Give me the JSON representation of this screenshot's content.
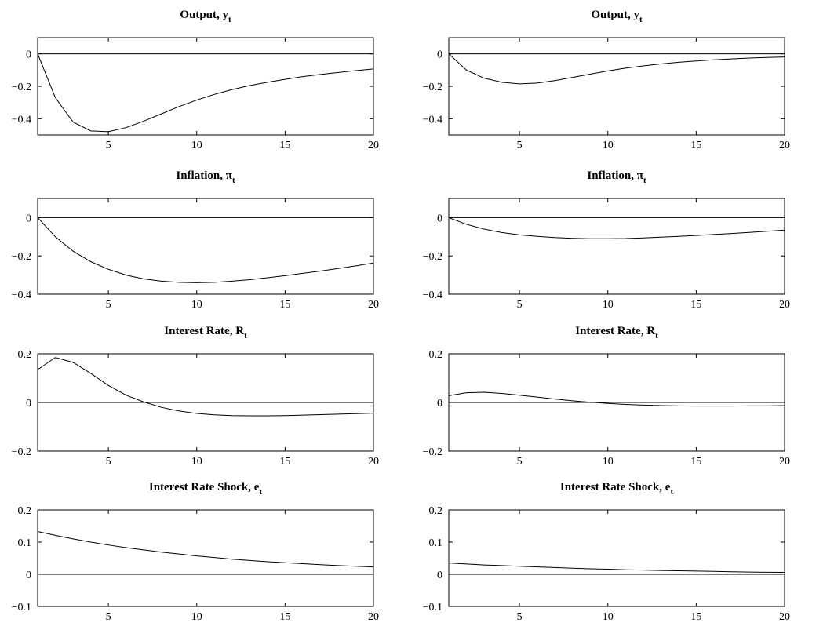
{
  "chart_data": [
    {
      "type": "line",
      "title": "Output, ",
      "title_var": "y",
      "title_sub": "t",
      "xlim": [
        1,
        20
      ],
      "ylim": [
        -0.5,
        0.1
      ],
      "xticks": [
        5,
        10,
        15,
        20
      ],
      "yticks": [
        -0.4,
        -0.2,
        0
      ],
      "ytick_labels": [
        "−0.4",
        "−0.2",
        "0"
      ],
      "zero_line": true,
      "x": [
        1,
        2,
        3,
        4,
        5,
        6,
        7,
        8,
        9,
        10,
        11,
        12,
        13,
        14,
        15,
        16,
        17,
        18,
        19,
        20
      ],
      "values": [
        0,
        -0.27,
        -0.42,
        -0.475,
        -0.48,
        -0.455,
        -0.415,
        -0.37,
        -0.325,
        -0.285,
        -0.25,
        -0.22,
        -0.195,
        -0.175,
        -0.157,
        -0.14,
        -0.127,
        -0.115,
        -0.103,
        -0.093
      ]
    },
    {
      "type": "line",
      "title": "Output, ",
      "title_var": "y",
      "title_sub": "t",
      "xlim": [
        1,
        20
      ],
      "ylim": [
        -0.5,
        0.1
      ],
      "xticks": [
        5,
        10,
        15,
        20
      ],
      "yticks": [
        -0.4,
        -0.2,
        0
      ],
      "ytick_labels": [
        "−0.4",
        "−0.2",
        "0"
      ],
      "zero_line": true,
      "x": [
        1,
        2,
        3,
        4,
        5,
        6,
        7,
        8,
        9,
        10,
        11,
        12,
        13,
        14,
        15,
        16,
        17,
        18,
        19,
        20
      ],
      "values": [
        0,
        -0.1,
        -0.15,
        -0.175,
        -0.185,
        -0.18,
        -0.165,
        -0.145,
        -0.125,
        -0.105,
        -0.088,
        -0.074,
        -0.062,
        -0.052,
        -0.044,
        -0.037,
        -0.031,
        -0.026,
        -0.022,
        -0.019
      ]
    },
    {
      "type": "line",
      "title": "Inflation, ",
      "title_var": "π",
      "title_sub": "t",
      "xlim": [
        1,
        20
      ],
      "ylim": [
        -0.4,
        0.1
      ],
      "xticks": [
        5,
        10,
        15,
        20
      ],
      "yticks": [
        -0.4,
        -0.2,
        0
      ],
      "ytick_labels": [
        "−0.4",
        "−0.2",
        "0"
      ],
      "zero_line": true,
      "x": [
        1,
        2,
        3,
        4,
        5,
        6,
        7,
        8,
        9,
        10,
        11,
        12,
        13,
        14,
        15,
        16,
        17,
        18,
        19,
        20
      ],
      "values": [
        0,
        -0.1,
        -0.175,
        -0.23,
        -0.27,
        -0.3,
        -0.32,
        -0.332,
        -0.338,
        -0.34,
        -0.338,
        -0.332,
        -0.324,
        -0.314,
        -0.303,
        -0.291,
        -0.279,
        -0.266,
        -0.252,
        -0.237
      ]
    },
    {
      "type": "line",
      "title": "Inflation, ",
      "title_var": "π",
      "title_sub": "t",
      "xlim": [
        1,
        20
      ],
      "ylim": [
        -0.4,
        0.1
      ],
      "xticks": [
        5,
        10,
        15,
        20
      ],
      "yticks": [
        -0.4,
        -0.2,
        0
      ],
      "ytick_labels": [
        "−0.4",
        "−0.2",
        "0"
      ],
      "zero_line": true,
      "x": [
        1,
        2,
        3,
        4,
        5,
        6,
        7,
        8,
        9,
        10,
        11,
        12,
        13,
        14,
        15,
        16,
        17,
        18,
        19,
        20
      ],
      "values": [
        0,
        -0.035,
        -0.06,
        -0.078,
        -0.09,
        -0.098,
        -0.104,
        -0.108,
        -0.11,
        -0.11,
        -0.109,
        -0.106,
        -0.102,
        -0.098,
        -0.093,
        -0.088,
        -0.083,
        -0.077,
        -0.071,
        -0.065
      ]
    },
    {
      "type": "line",
      "title": "Interest Rate, ",
      "title_var": "R",
      "title_sub": "t",
      "xlim": [
        1,
        20
      ],
      "ylim": [
        -0.2,
        0.2
      ],
      "xticks": [
        5,
        10,
        15,
        20
      ],
      "yticks": [
        -0.2,
        0,
        0.2
      ],
      "ytick_labels": [
        "−0.2",
        "0",
        "0.2"
      ],
      "zero_line": true,
      "x": [
        1,
        2,
        3,
        4,
        5,
        6,
        7,
        8,
        9,
        10,
        11,
        12,
        13,
        14,
        15,
        16,
        17,
        18,
        19,
        20
      ],
      "values": [
        0.135,
        0.185,
        0.165,
        0.12,
        0.07,
        0.03,
        0.002,
        -0.02,
        -0.035,
        -0.045,
        -0.051,
        -0.054,
        -0.055,
        -0.055,
        -0.054,
        -0.052,
        -0.05,
        -0.048,
        -0.046,
        -0.044
      ]
    },
    {
      "type": "line",
      "title": "Interest Rate, ",
      "title_var": "R",
      "title_sub": "t",
      "xlim": [
        1,
        20
      ],
      "ylim": [
        -0.2,
        0.2
      ],
      "xticks": [
        5,
        10,
        15,
        20
      ],
      "yticks": [
        -0.2,
        0,
        0.2
      ],
      "ytick_labels": [
        "−0.2",
        "0",
        "0.2"
      ],
      "zero_line": true,
      "x": [
        1,
        2,
        3,
        4,
        5,
        6,
        7,
        8,
        9,
        10,
        11,
        12,
        13,
        14,
        15,
        16,
        17,
        18,
        19,
        20
      ],
      "values": [
        0.028,
        0.04,
        0.042,
        0.037,
        0.03,
        0.022,
        0.014,
        0.007,
        0.001,
        -0.004,
        -0.008,
        -0.011,
        -0.013,
        -0.014,
        -0.015,
        -0.015,
        -0.015,
        -0.014,
        -0.014,
        -0.013
      ]
    },
    {
      "type": "line",
      "title": "Interest Rate Shock, ",
      "title_var": "e",
      "title_sub": "t",
      "xlim": [
        1,
        20
      ],
      "ylim": [
        -0.1,
        0.2
      ],
      "xticks": [
        5,
        10,
        15,
        20
      ],
      "yticks": [
        -0.1,
        0,
        0.1,
        0.2
      ],
      "ytick_labels": [
        "−0.1",
        "0",
        "0.1",
        "0.2"
      ],
      "zero_line": true,
      "x": [
        1,
        2,
        3,
        4,
        5,
        6,
        7,
        8,
        9,
        10,
        11,
        12,
        13,
        14,
        15,
        16,
        17,
        18,
        19,
        20
      ],
      "values": [
        0.133,
        0.121,
        0.11,
        0.1,
        0.091,
        0.083,
        0.076,
        0.069,
        0.063,
        0.057,
        0.052,
        0.047,
        0.043,
        0.039,
        0.036,
        0.033,
        0.03,
        0.027,
        0.025,
        0.023
      ]
    },
    {
      "type": "line",
      "title": "Interest Rate Shock, ",
      "title_var": "e",
      "title_sub": "t",
      "xlim": [
        1,
        20
      ],
      "ylim": [
        -0.1,
        0.2
      ],
      "xticks": [
        5,
        10,
        15,
        20
      ],
      "yticks": [
        -0.1,
        0,
        0.1,
        0.2
      ],
      "ytick_labels": [
        "−0.1",
        "0",
        "0.1",
        "0.2"
      ],
      "zero_line": true,
      "x": [
        1,
        2,
        3,
        4,
        5,
        6,
        7,
        8,
        9,
        10,
        11,
        12,
        13,
        14,
        15,
        16,
        17,
        18,
        19,
        20
      ],
      "values": [
        0.035,
        0.032,
        0.029,
        0.027,
        0.025,
        0.023,
        0.021,
        0.019,
        0.017,
        0.016,
        0.014,
        0.013,
        0.012,
        0.011,
        0.01,
        0.009,
        0.008,
        0.007,
        0.0065,
        0.006
      ]
    }
  ]
}
